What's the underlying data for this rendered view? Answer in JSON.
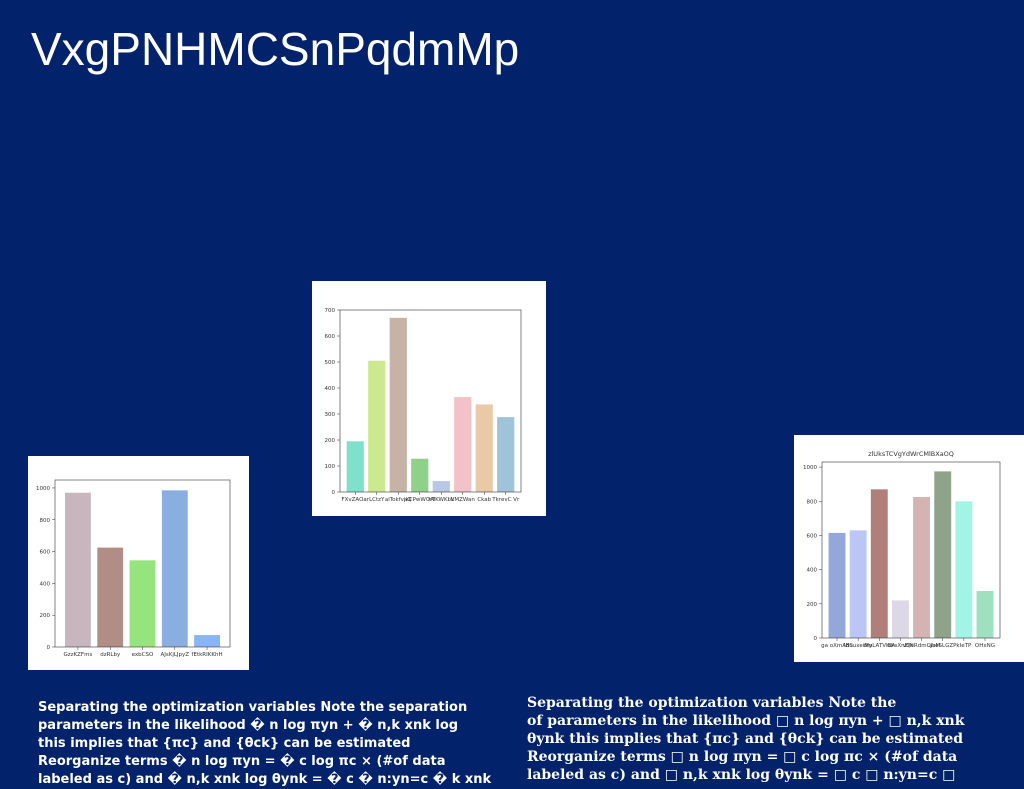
{
  "title": "VxgPNHMCSnPqdmMp",
  "chart_data": [
    {
      "type": "bar",
      "categories": [
        "FXvZAOar",
        "LCtzY",
        "aiTokfvaQ",
        "jkCPwWOAI",
        "hTKWKbk",
        "VMZWan",
        "Ckab",
        "TkrevC Vr"
      ],
      "values": [
        195,
        505,
        670,
        128,
        42,
        365,
        337,
        288
      ],
      "colors": [
        "#7fe0cc",
        "#cde98f",
        "#c6b3a6",
        "#8fd18a",
        "#b7c8e6",
        "#f2c2c8",
        "#e8cba6",
        "#9fc4d8"
      ],
      "ylim": [
        0,
        700
      ],
      "yticks": [
        0,
        100,
        200,
        300,
        400,
        500,
        600,
        700
      ]
    },
    {
      "type": "bar",
      "categories": [
        "GzzKZFms",
        "dzRLby",
        "exbCSO",
        "AJsKjLJpyZ",
        "fEtkRIKKhH"
      ],
      "values": [
        970,
        625,
        545,
        985,
        75
      ],
      "colors": [
        "#c8b6bf",
        "#b08e86",
        "#96e47e",
        "#8aaee0",
        "#8ab4f8"
      ],
      "ylim": [
        0,
        1050
      ],
      "yticks": [
        0,
        200,
        400,
        600,
        800,
        1000
      ]
    },
    {
      "type": "bar",
      "title": "zlUksTCVgYdWrCMlBXaOQ",
      "categories": [
        "ga oXmAdS",
        "lBuuxeiMy",
        "dmLATVIBA",
        "ulrsXnElN",
        "vQnRdmCJbM",
        "aseSLGZP",
        "kIeTP",
        "OHxNG"
      ],
      "values": [
        615,
        630,
        870,
        220,
        825,
        975,
        800,
        275
      ],
      "colors": [
        "#93a8d8",
        "#bcc6f5",
        "#b07f7a",
        "#ddd8e6",
        "#d4b3b3",
        "#8fa38a",
        "#a2f5e6",
        "#9fe0c0"
      ],
      "ylim": [
        0,
        1030
      ],
      "yticks": [
        0,
        200,
        400,
        600,
        800,
        1000
      ]
    }
  ],
  "text_left": [
    "Separating the optimization variables Note the separation",
    "parameters in the likelihood � n log πyn + � n,k xnk log",
    "this implies that {πc} and {θck} can be estimated",
    "Reorganize terms � n log πyn = � c log πc × (#of data",
    "labeled as c) and � n,k xnk log θynk = � c � n:yn=c � k xnk"
  ],
  "text_right": [
    "Separating the optimization variables Note the",
    "of parameters in the likelihood □ n log πyn + □ n,k xnk",
    "θynk this implies that {πc} and {θck} can be estimated",
    "Reorganize terms □ n log πyn = □ c log πc × (#of data",
    "labeled as c) and □ n,k xnk log θynk = □ c □ n:yn=c □"
  ]
}
